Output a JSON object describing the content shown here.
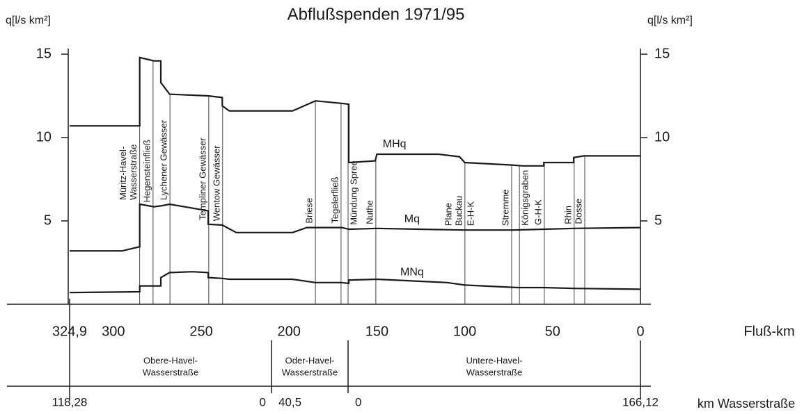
{
  "chart_data": {
    "type": "line",
    "title": "Abflußspenden 1971/95",
    "ylabel": "q[l/s km²]",
    "xlabel": "Fluß-km",
    "x2label": "km Wasserstraße",
    "xlim": [
      324.9,
      0
    ],
    "xticks": [
      {
        "value": 324.9,
        "label": "324,9"
      },
      300,
      250,
      200,
      150,
      100,
      50,
      0
    ],
    "ylim": [
      0,
      15.5
    ],
    "yticks": [
      5,
      10,
      15
    ],
    "series": [
      {
        "name": "MHq",
        "color": "#1a1a1a",
        "x": [
          324.9,
          285,
          285,
          277,
          273,
          273,
          268,
          246,
          238,
          238,
          234,
          198,
          185,
          170,
          166,
          166,
          151,
          150,
          115,
          103,
          100,
          73,
          67,
          55,
          55,
          38,
          38,
          32,
          0
        ],
        "values": [
          10.7,
          10.7,
          14.8,
          14.6,
          14.6,
          13.3,
          12.6,
          12.5,
          12.4,
          11.9,
          11.6,
          11.6,
          12.2,
          12.05,
          12.0,
          8.5,
          8.6,
          9.0,
          9.0,
          8.85,
          8.5,
          8.35,
          8.3,
          8.3,
          8.5,
          8.5,
          8.8,
          8.9,
          8.9
        ]
      },
      {
        "name": "Mq",
        "color": "#1a1a1a",
        "x": [
          324.9,
          295,
          285,
          285,
          277,
          273,
          268,
          246,
          246,
          238,
          230,
          198,
          190,
          170,
          166,
          150,
          100,
          73,
          55,
          38,
          0
        ],
        "values": [
          3.2,
          3.2,
          3.45,
          6.0,
          5.85,
          5.9,
          6.0,
          5.6,
          4.8,
          4.75,
          4.3,
          4.3,
          4.6,
          4.6,
          4.5,
          4.55,
          4.45,
          4.45,
          4.5,
          4.55,
          4.6
        ]
      },
      {
        "name": "MNq",
        "color": "#1a1a1a",
        "x": [
          324.9,
          285,
          285,
          273,
          273,
          268,
          255,
          246,
          246,
          238,
          234,
          198,
          185,
          170,
          166,
          166,
          150,
          110,
          100,
          70,
          55,
          38,
          0
        ],
        "values": [
          0.7,
          0.75,
          1.1,
          1.1,
          1.6,
          1.9,
          1.95,
          1.9,
          1.6,
          1.55,
          1.5,
          1.5,
          1.3,
          1.3,
          1.25,
          1.45,
          1.5,
          1.3,
          1.15,
          1.0,
          1.0,
          0.95,
          0.9
        ]
      }
    ],
    "tributaries": [
      {
        "label": "Müritz-Havel-",
        "km": 285,
        "side": "left"
      },
      {
        "label": "Wasserstraße",
        "km": 285,
        "side": "left"
      },
      {
        "label": "Hegensteinfließ",
        "km": 277.4,
        "side": "left"
      },
      {
        "label": "Lychener Gewässer",
        "km": 267.8,
        "side": "left"
      },
      {
        "label": "Templiner Gewässer",
        "km": 245.7,
        "side": "left"
      },
      {
        "label": "Wentow Gewässer",
        "km": 237.8,
        "side": "left"
      },
      {
        "label": "Briese",
        "km": 185,
        "side": "left"
      },
      {
        "label": "Tegelerfließ",
        "km": 170.4,
        "side": "left"
      },
      {
        "label": "Mündung Spree",
        "km": 166.4,
        "side": "right"
      },
      {
        "label": "Nuthe",
        "km": 150.6,
        "side": "left"
      },
      {
        "label": "Plane",
        "km": 99.9,
        "side": "left"
      },
      {
        "label": "Buckau",
        "km": 99.9,
        "side": "left"
      },
      {
        "label": "E-H-K",
        "km": 99.9,
        "side": "right"
      },
      {
        "label": "Stremme",
        "km": 73.3,
        "side": "left"
      },
      {
        "label": "Königsgraben",
        "km": 68.9,
        "side": "right"
      },
      {
        "label": "G-H-K",
        "km": 54.7,
        "side": "left"
      },
      {
        "label": "Rhin",
        "km": 37.7,
        "side": "left"
      },
      {
        "label": "Dosse",
        "km": 31.7,
        "side": "left"
      }
    ],
    "sections": [
      {
        "name": [
          "Obere-Havel-",
          "Wasserstraße"
        ],
        "from": 324.9,
        "to": 210,
        "start_label": "118,28",
        "end_label": "0"
      },
      {
        "name": [
          "Oder-Havel-",
          "Wasserstraße"
        ],
        "from": 210,
        "to": 166.4,
        "start_label": "40,5"
      },
      {
        "name": [
          "Untere-Havel-",
          "Wasserstraße"
        ],
        "from": 166.4,
        "to": 0,
        "start_label": "0",
        "end_label": "166,12"
      }
    ]
  }
}
